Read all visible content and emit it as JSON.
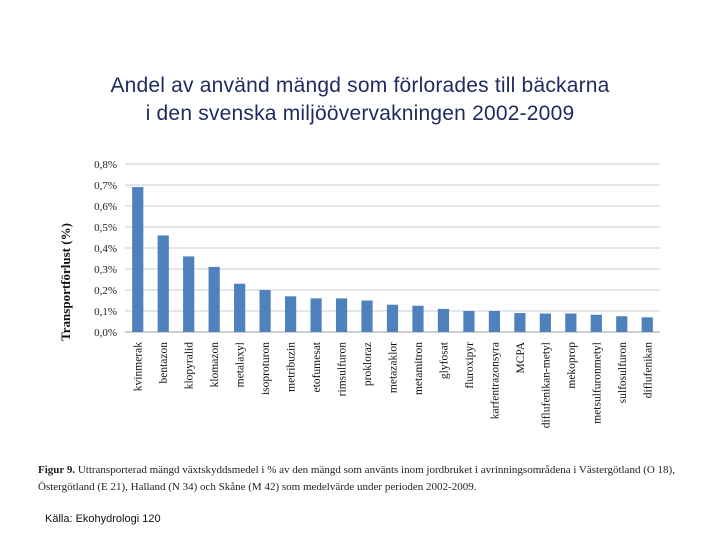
{
  "slide": {
    "title_line1": "Andel av använd mängd som förlorades till bäckarna",
    "title_line2": "i den svenska miljöövervakningen 2002-2009"
  },
  "figure_caption": {
    "label": "Figur 9.",
    "text": " Uttransporterad mängd växtskyddsmedel i % av den mängd som använts inom jordbruket i avrinningsområdena i Västergötland (O 18), Östergötland (E 21), Halland (N 34) och Skåne (M 42) som medelvärde under perioden 2002-2009."
  },
  "source": "Källa: Ekohydrologi 120",
  "colors": {
    "bar": "#4f81bd",
    "title": "#1f2a5e",
    "grid": "#c7ccd6"
  },
  "chart_data": {
    "type": "bar",
    "title": "",
    "xlabel": "",
    "ylabel": "Transportförlust (%)",
    "ylim": [
      0,
      0.8
    ],
    "yticks": [
      0,
      0.1,
      0.2,
      0.3,
      0.4,
      0.5,
      0.6,
      0.7,
      0.8
    ],
    "ytick_labels": [
      "0,0%",
      "0,1%",
      "0,2%",
      "0,3%",
      "0,4%",
      "0,5%",
      "0,6%",
      "0,7%",
      "0,8%"
    ],
    "grid": true,
    "categories": [
      "kvinmerak",
      "bentazon",
      "klopyralid",
      "klomazon",
      "metalaxyl",
      "isoproturon",
      "metribuzin",
      "etofumesat",
      "rimsulfuron",
      "prokloraz",
      "metazaklor",
      "metamitron",
      "glyfosat",
      "fluroxipyr",
      "karfentrazonsyra",
      "MCPA",
      "diflufenikan-metyl",
      "mekoprop",
      "metsulfuronmetyl",
      "sulfosulfuron",
      "diflufenikan"
    ],
    "values": [
      0.69,
      0.46,
      0.36,
      0.31,
      0.23,
      0.2,
      0.17,
      0.16,
      0.16,
      0.15,
      0.13,
      0.125,
      0.11,
      0.1,
      0.1,
      0.09,
      0.088,
      0.088,
      0.082,
      0.075,
      0.07
    ]
  }
}
